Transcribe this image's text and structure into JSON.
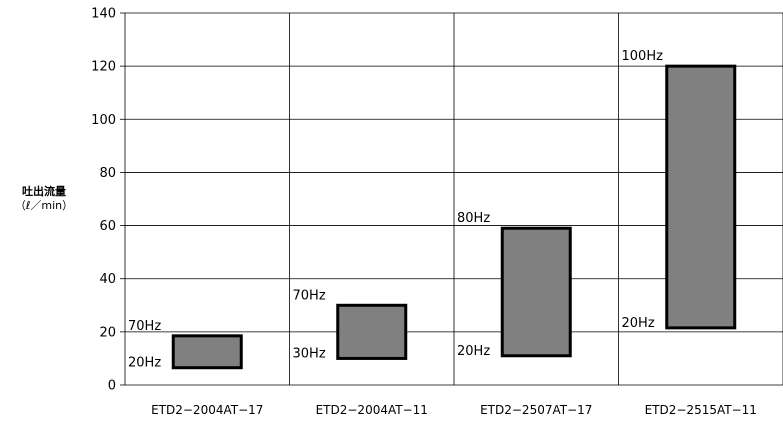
{
  "chart_data": {
    "type": "floating-bar",
    "categories": [
      "ETD2−2004AT−17",
      "ETD2−2004AT−11",
      "ETD2−2507AT−17",
      "ETD2−2515AT−11"
    ],
    "series": [
      {
        "values": [
          {
            "low": 6.5,
            "high": 18.5,
            "low_label": "20Hz",
            "high_label": "70Hz"
          },
          {
            "low": 10,
            "high": 30,
            "low_label": "30Hz",
            "high_label": "70Hz"
          },
          {
            "low": 11,
            "high": 59,
            "low_label": "20Hz",
            "high_label": "80Hz"
          },
          {
            "low": 21.5,
            "high": 120,
            "low_label": "20Hz",
            "high_label": "100Hz"
          }
        ]
      }
    ],
    "ylabel": "吐出流量",
    "yunit": "（ℓ／min）",
    "ylim": [
      0,
      140
    ],
    "yticks": [
      0,
      20,
      40,
      60,
      80,
      100,
      120,
      140
    ],
    "grid": true,
    "bar_color": "#808080"
  }
}
